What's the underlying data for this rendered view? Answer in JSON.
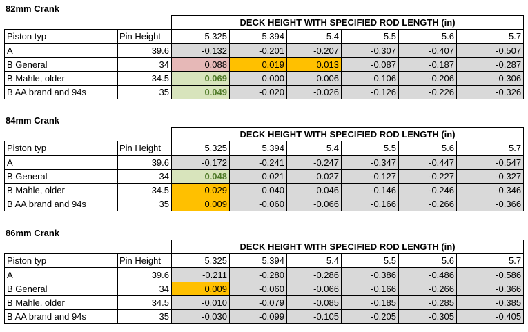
{
  "header_label": "DECK HEIGHT WITH SPECIFIED ROD LENGTH (in)",
  "columns": {
    "piston": "Piston typ",
    "pin": "Pin Height",
    "rod_lengths": [
      "5.325",
      "5.394",
      "5.4",
      "5.5",
      "5.6",
      "5.7"
    ]
  },
  "colors": {
    "gray": "#d9d9d9",
    "orange": "#ffc000",
    "pink": "#e6b8b7",
    "green_fill": "#d8e4bc",
    "green_text": "#4f7a28"
  },
  "sections": [
    {
      "title": "82mm Crank",
      "rows": [
        {
          "piston": "A",
          "pin": "39.6",
          "values": [
            "-0.132",
            "-0.201",
            "-0.207",
            "-0.307",
            "-0.407",
            "-0.507"
          ],
          "hl": [
            "",
            "",
            "",
            "",
            "",
            ""
          ]
        },
        {
          "piston": "B General",
          "pin": "34",
          "values": [
            "0.088",
            "0.019",
            "0.013",
            "-0.087",
            "-0.187",
            "-0.287"
          ],
          "hl": [
            "pink",
            "orange",
            "orange",
            "",
            "",
            ""
          ]
        },
        {
          "piston": "B Mahle, older",
          "pin": "34.5",
          "values": [
            "0.069",
            "0.000",
            "-0.006",
            "-0.106",
            "-0.206",
            "-0.306"
          ],
          "hl": [
            "green",
            "",
            "",
            "",
            "",
            ""
          ]
        },
        {
          "piston": "B AA brand and 94s",
          "pin": "35",
          "values": [
            "0.049",
            "-0.020",
            "-0.026",
            "-0.126",
            "-0.226",
            "-0.326"
          ],
          "hl": [
            "green",
            "",
            "",
            "",
            "",
            ""
          ]
        }
      ]
    },
    {
      "title": "84mm Crank",
      "rows": [
        {
          "piston": "A",
          "pin": "39.6",
          "values": [
            "-0.172",
            "-0.241",
            "-0.247",
            "-0.347",
            "-0.447",
            "-0.547"
          ],
          "hl": [
            "",
            "",
            "",
            "",
            "",
            ""
          ]
        },
        {
          "piston": "B General",
          "pin": "34",
          "values": [
            "0.048",
            "-0.021",
            "-0.027",
            "-0.127",
            "-0.227",
            "-0.327"
          ],
          "hl": [
            "green",
            "",
            "",
            "",
            "",
            ""
          ]
        },
        {
          "piston": "B Mahle, older",
          "pin": "34.5",
          "values": [
            "0.029",
            "-0.040",
            "-0.046",
            "-0.146",
            "-0.246",
            "-0.346"
          ],
          "hl": [
            "orange",
            "",
            "",
            "",
            "",
            ""
          ]
        },
        {
          "piston": "B AA brand and 94s",
          "pin": "35",
          "values": [
            "0.009",
            "-0.060",
            "-0.066",
            "-0.166",
            "-0.266",
            "-0.366"
          ],
          "hl": [
            "orange",
            "",
            "",
            "",
            "",
            ""
          ]
        }
      ]
    },
    {
      "title": "86mm Crank",
      "rows": [
        {
          "piston": "A",
          "pin": "39.6",
          "values": [
            "-0.211",
            "-0.280",
            "-0.286",
            "-0.386",
            "-0.486",
            "-0.586"
          ],
          "hl": [
            "",
            "",
            "",
            "",
            "",
            ""
          ]
        },
        {
          "piston": "B General",
          "pin": "34",
          "values": [
            "0.009",
            "-0.060",
            "-0.066",
            "-0.166",
            "-0.266",
            "-0.366"
          ],
          "hl": [
            "orange",
            "",
            "",
            "",
            "",
            ""
          ]
        },
        {
          "piston": "B Mahle, older",
          "pin": "34.5",
          "values": [
            "-0.010",
            "-0.079",
            "-0.085",
            "-0.185",
            "-0.285",
            "-0.385"
          ],
          "hl": [
            "",
            "",
            "",
            "",
            "",
            ""
          ]
        },
        {
          "piston": "B AA brand and 94s",
          "pin": "35",
          "values": [
            "-0.030",
            "-0.099",
            "-0.105",
            "-0.205",
            "-0.305",
            "-0.405"
          ],
          "hl": [
            "",
            "",
            "",
            "",
            "",
            ""
          ]
        }
      ]
    }
  ]
}
